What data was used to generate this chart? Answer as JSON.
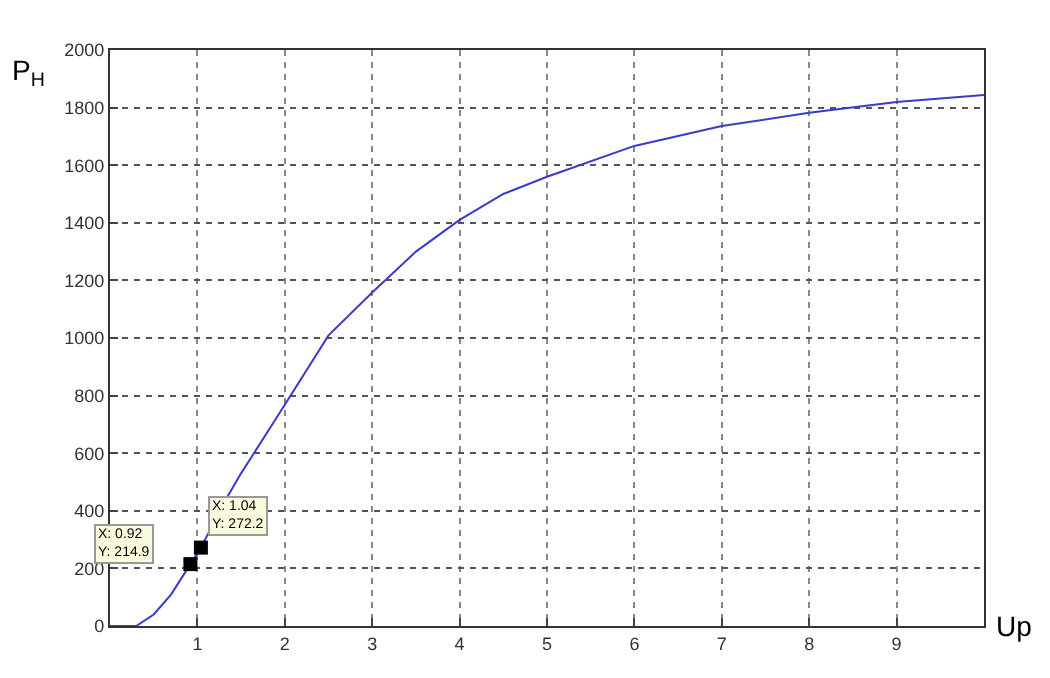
{
  "chart_data": {
    "type": "line",
    "xlabel": "Up",
    "ylabel": "P$_{H}$",
    "xlim": [
      0,
      10
    ],
    "ylim": [
      0,
      2000
    ],
    "xticks": [
      1,
      2,
      3,
      4,
      5,
      6,
      7,
      8,
      9
    ],
    "yticks": [
      0,
      200,
      400,
      600,
      800,
      1000,
      1200,
      1400,
      1600,
      1800,
      2000
    ],
    "grid": true,
    "line_style": "solid",
    "marker": "none",
    "series": [
      {
        "color": "#3a3acc",
        "x": [
          0,
          0.3,
          0.5,
          0.7,
          0.92,
          1.04,
          1.34,
          1.5,
          2,
          2.5,
          3,
          3.5,
          4,
          4.5,
          5,
          6,
          7,
          8,
          9,
          10
        ],
        "values": [
          0,
          0,
          40,
          110,
          214.9,
          272.2,
          447,
          530,
          768,
          1009,
          1158,
          1300,
          1410,
          1500,
          1560,
          1667,
          1736,
          1782,
          1819,
          1844
        ]
      },
      {
        "type": "scatter",
        "marker": "square",
        "color": "#000000",
        "x": [
          0.92,
          1.04
        ],
        "values": [
          214.9,
          272.2
        ]
      }
    ],
    "annotations": [
      {
        "text": "X: 0.92\nY: 214.9",
        "x": 0.92,
        "y": 214.9
      },
      {
        "text": "X: 1.04\nY: 272.2",
        "x": 1.04,
        "y": 272.2
      }
    ]
  }
}
